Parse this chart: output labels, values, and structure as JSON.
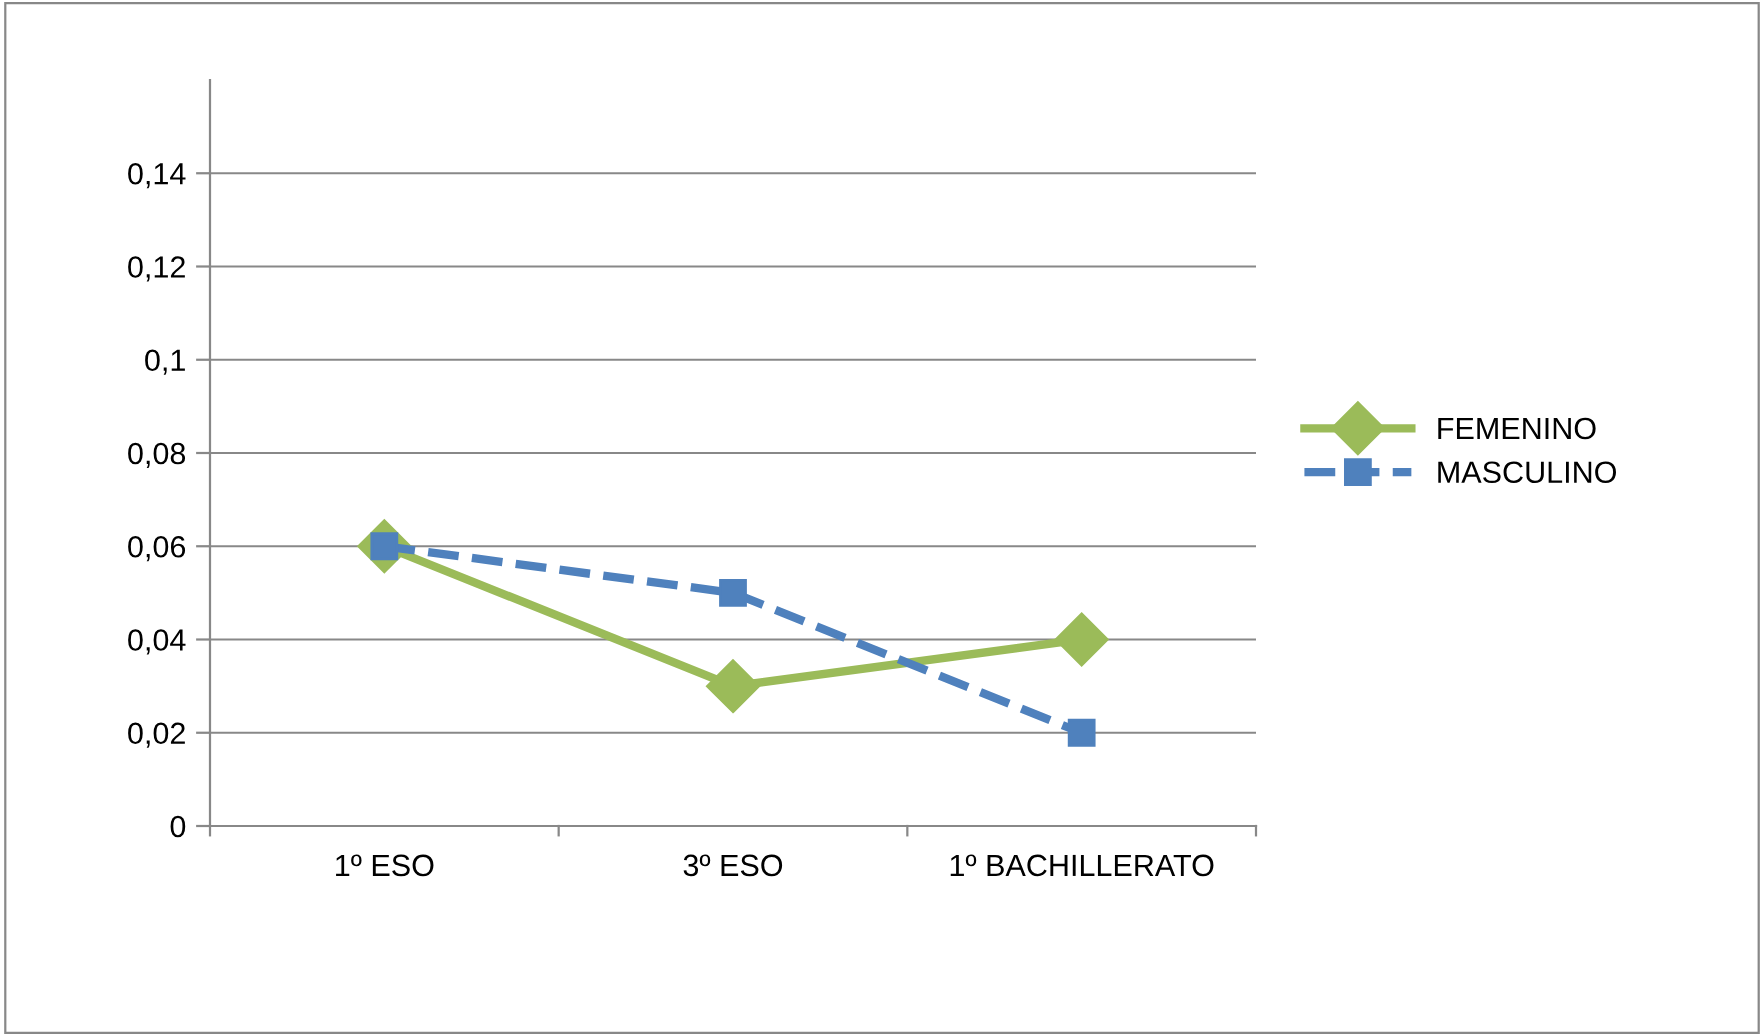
{
  "chart_data": {
    "type": "line",
    "categories": [
      "1º ESO",
      "3º ESO",
      "1º BACHILLERATO"
    ],
    "series": [
      {
        "name": "FEMENINO",
        "color": "#9bbb59",
        "values": [
          0.06,
          0.03,
          0.04
        ],
        "marker": "diamond",
        "line_style": "solid"
      },
      {
        "name": "MASCULINO",
        "color": "#4f81bd",
        "values": [
          0.06,
          0.05,
          0.02
        ],
        "marker": "square",
        "line_style": "dashed"
      }
    ],
    "ylim": [
      0,
      0.16
    ],
    "yticks": [
      0,
      {
        "value": 0.02,
        "label": "0,02"
      },
      {
        "value": 0.04,
        "label": "0,04"
      },
      {
        "value": 0.06,
        "label": "0,06"
      },
      {
        "value": 0.08,
        "label": "0,08"
      },
      {
        "value": 0.1,
        "label": "0,1"
      },
      {
        "value": 0.12,
        "label": "0,12"
      },
      {
        "value": 0.14,
        "label": "0,14"
      }
    ],
    "grid": "y",
    "legend": "right"
  }
}
